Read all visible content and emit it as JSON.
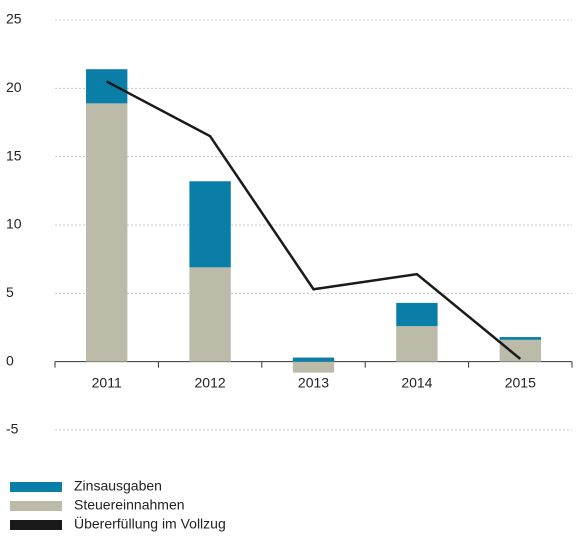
{
  "chart_data": {
    "type": "bar",
    "stacked": true,
    "categories": [
      "2011",
      "2012",
      "2013",
      "2014",
      "2015"
    ],
    "series": [
      {
        "name": "Zinsausgaben",
        "type": "bar",
        "color": "#0a7ea6",
        "values": [
          2.5,
          6.3,
          0.3,
          1.7,
          0.2
        ]
      },
      {
        "name": "Steuereinnahmen",
        "type": "bar",
        "color": "#bcbaa9",
        "values": [
          18.9,
          6.9,
          -0.8,
          2.6,
          1.6
        ]
      },
      {
        "name": "Übererfüllung im Vollzug",
        "type": "line",
        "color": "#1a1a1a",
        "values": [
          20.5,
          16.5,
          5.3,
          6.4,
          0.2
        ]
      }
    ],
    "ylim": [
      -5,
      25
    ],
    "yticks": [
      -5,
      0,
      5,
      10,
      15,
      20,
      25
    ],
    "grid": true
  }
}
